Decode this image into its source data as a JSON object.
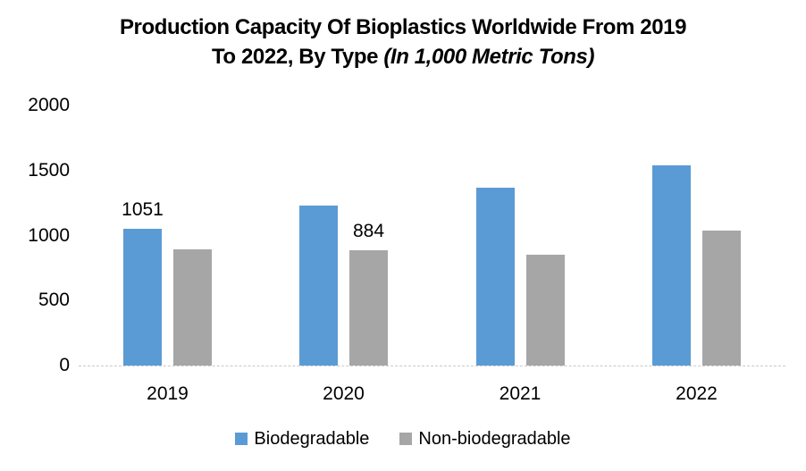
{
  "title": {
    "line1": "Production Capacity Of Bioplastics Worldwide From 2019",
    "line2_regular": "To 2022, By Type ",
    "line2_italic": "(In 1,000 Metric Tons)"
  },
  "chart_data": {
    "type": "bar",
    "title": "Production Capacity Of Bioplastics Worldwide From 2019 To 2022, By Type (In 1,000 Metric Tons)",
    "categories": [
      "2019",
      "2020",
      "2021",
      "2022"
    ],
    "series": [
      {
        "name": "Biodegradable",
        "color": "#5B9BD5",
        "values": [
          1051,
          1227,
          1365,
          1540
        ]
      },
      {
        "name": "Non-biodegradable",
        "color": "#A6A6A6",
        "values": [
          895,
          884,
          855,
          1040
        ]
      }
    ],
    "data_labels": [
      {
        "series_index": 0,
        "category_index": 0,
        "text": "1051"
      },
      {
        "series_index": 1,
        "category_index": 1,
        "text": "884"
      }
    ],
    "xlabel": "",
    "ylabel": "",
    "ylim": [
      0,
      2000
    ],
    "yticks": [
      0,
      500,
      1000,
      1500,
      2000
    ],
    "ytick_labels": [
      "0",
      "500",
      "1000",
      "1500",
      "2000"
    ],
    "gridlines": false,
    "legend_position": "bottom"
  },
  "colors": {
    "biodegradable": "#5B9BD5",
    "non_biodegradable": "#A6A6A6",
    "axis_line": "#C9C9C9",
    "text": "#000000",
    "background": "#FFFFFF"
  }
}
